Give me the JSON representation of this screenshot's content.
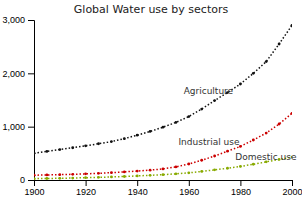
{
  "chart_data": {
    "type": "line",
    "title": "Global Water use by sectors",
    "x": [
      1900,
      1905,
      1910,
      1915,
      1920,
      1925,
      1930,
      1935,
      1940,
      1945,
      1950,
      1955,
      1960,
      1965,
      1970,
      1975,
      1980,
      1985,
      1990,
      1995,
      2000
    ],
    "series": [
      {
        "color": "#111111",
        "values": [
          500,
          535,
          570,
          605,
          640,
          680,
          720,
          775,
          840,
          910,
          990,
          1080,
          1190,
          1330,
          1490,
          1640,
          1800,
          2000,
          2220,
          2550,
          2900
        ]
      },
      {
        "color": "#cc0000",
        "values": [
          90,
          95,
          100,
          107,
          115,
          125,
          138,
          152,
          168,
          185,
          208,
          245,
          300,
          370,
          450,
          540,
          630,
          750,
          880,
          1050,
          1250
        ]
      },
      {
        "color": "#88aa00",
        "values": [
          25,
          28,
          32,
          37,
          43,
          50,
          57,
          66,
          76,
          88,
          100,
          115,
          135,
          160,
          190,
          220,
          255,
          295,
          340,
          385,
          430
        ]
      }
    ],
    "annotations": [
      {
        "text": "Agriculture",
        "x": 1958,
        "y": 1570
      },
      {
        "text": "Industrial use",
        "x": 1956,
        "y": 610
      },
      {
        "text": "Domestic use",
        "x": 1978,
        "y": 330
      }
    ],
    "xlim": [
      1900,
      2000
    ],
    "xticks": [
      1900,
      1920,
      1940,
      1960,
      1980,
      2000
    ],
    "ylim": [
      0,
      3000
    ],
    "yticks": [
      0,
      {
        "value": 1000,
        "label": "1,000"
      },
      {
        "value": 2000,
        "label": "2,000"
      },
      {
        "value": 3000,
        "label": "3,000"
      }
    ],
    "line_style": "dotted",
    "marker": "dot",
    "grid": false
  }
}
